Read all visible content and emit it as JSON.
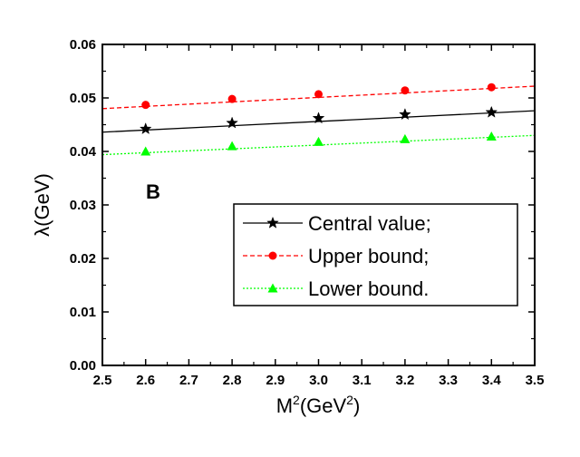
{
  "chart_data": {
    "type": "line",
    "panel_label": "B",
    "xlabel": "M²(GeV²)",
    "xlabel_parts": {
      "base": "M",
      "sup1": "2",
      "mid": "(GeV",
      "sup2": "2",
      "end": ")"
    },
    "ylabel": "λ(GeV)",
    "xlim": [
      2.5,
      3.5
    ],
    "ylim": [
      0.0,
      0.06
    ],
    "xticks": [
      "2.5",
      "2.6",
      "2.7",
      "2.8",
      "2.9",
      "3.0",
      "3.1",
      "3.2",
      "3.3",
      "3.4",
      "3.5"
    ],
    "yticks": [
      "0.00",
      "0.01",
      "0.02",
      "0.03",
      "0.04",
      "0.05",
      "0.06"
    ],
    "grid": false,
    "legend_position": "lower-right",
    "series": [
      {
        "name": "Central value;",
        "color": "#000000",
        "line_style": "solid",
        "marker": "star",
        "line_x": [
          2.5,
          3.5
        ],
        "line_y": [
          0.0436,
          0.0476
        ],
        "x": [
          2.6,
          2.8,
          3.0,
          3.2,
          3.4
        ],
        "values": [
          0.0442,
          0.0453,
          0.0462,
          0.0469,
          0.0473
        ]
      },
      {
        "name": "Upper bound;",
        "color": "#ff0000",
        "line_style": "dashed",
        "marker": "circle",
        "line_x": [
          2.5,
          3.5
        ],
        "line_y": [
          0.048,
          0.0522
        ],
        "x": [
          2.6,
          2.8,
          3.0,
          3.2,
          3.4
        ],
        "values": [
          0.0487,
          0.0498,
          0.0507,
          0.0514,
          0.052
        ]
      },
      {
        "name": "Lower bound.",
        "color": "#00ff00",
        "line_style": "dotted",
        "marker": "triangle",
        "line_x": [
          2.5,
          3.5
        ],
        "line_y": [
          0.0394,
          0.043
        ],
        "x": [
          2.6,
          2.8,
          3.0,
          3.2,
          3.4
        ],
        "values": [
          0.04,
          0.041,
          0.0418,
          0.0423,
          0.0428
        ]
      }
    ]
  }
}
